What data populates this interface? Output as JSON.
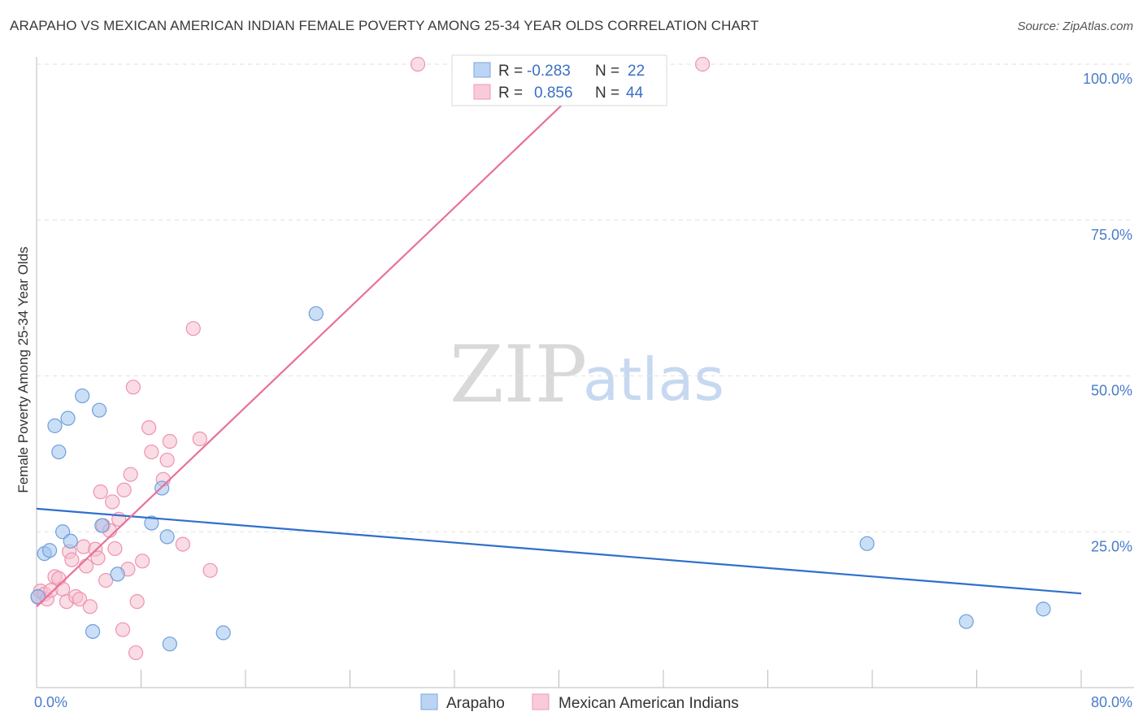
{
  "title": "ARAPAHO VS MEXICAN AMERICAN INDIAN FEMALE POVERTY AMONG 25-34 YEAR OLDS CORRELATION CHART",
  "source": "Source: ZipAtlas.com",
  "watermark": {
    "zip": "ZIP",
    "atlas": "atlas"
  },
  "legend": {
    "rows": [
      {
        "r_label": "R =",
        "r_value": "-0.283",
        "n_label": "N =",
        "n_value": "22"
      },
      {
        "r_label": "R =",
        "r_value": "0.856",
        "n_label": "N =",
        "n_value": "44"
      }
    ]
  },
  "chart_data": {
    "type": "scatter",
    "title": "ARAPAHO VS MEXICAN AMERICAN INDIAN FEMALE POVERTY AMONG 25-34 YEAR OLDS CORRELATION CHART",
    "xlabel": "",
    "ylabel": "Female Poverty Among 25-34 Year Olds",
    "xlim": [
      0,
      80
    ],
    "ylim": [
      0,
      102
    ],
    "x_tick_labels": [
      "0.0%",
      "80.0%"
    ],
    "y_ticks": [
      25,
      50,
      75,
      100
    ],
    "y_tick_labels": [
      "25.0%",
      "50.0%",
      "75.0%",
      "100.0%"
    ],
    "grid": true,
    "legend_position": "bottom",
    "series": [
      {
        "name": "Arapaho",
        "color": "#9ec2ee",
        "edge": "#6f9fdc",
        "line_color": "#2f6fcc",
        "trend": {
          "x0": 0,
          "y0": 28.7,
          "x1": 80,
          "y1": 15.1
        },
        "points": [
          [
            0.6,
            21.5
          ],
          [
            1.0,
            22.0
          ],
          [
            1.4,
            42.0
          ],
          [
            1.7,
            37.8
          ],
          [
            2.0,
            25.0
          ],
          [
            2.4,
            43.2
          ],
          [
            2.6,
            23.5
          ],
          [
            3.5,
            46.8
          ],
          [
            4.3,
            9.0
          ],
          [
            4.8,
            44.5
          ],
          [
            5.0,
            26.0
          ],
          [
            6.2,
            18.2
          ],
          [
            8.8,
            26.4
          ],
          [
            9.6,
            32.0
          ],
          [
            10.0,
            24.2
          ],
          [
            10.2,
            7.0
          ],
          [
            14.3,
            8.8
          ],
          [
            21.4,
            60.0
          ],
          [
            63.6,
            23.1
          ],
          [
            71.2,
            10.6
          ],
          [
            77.1,
            12.6
          ],
          [
            0.1,
            14.6
          ]
        ]
      },
      {
        "name": "Mexican American Indians",
        "color": "#f6bfd0",
        "edge": "#ee93b0",
        "line_color": "#e8719a",
        "trend": {
          "x0": 0,
          "y0": 13.0,
          "x1": 43.5,
          "y1": 100.0
        },
        "points": [
          [
            0.1,
            14.5
          ],
          [
            0.3,
            15.5
          ],
          [
            0.6,
            15.0
          ],
          [
            0.8,
            14.2
          ],
          [
            1.1,
            15.6
          ],
          [
            1.4,
            17.8
          ],
          [
            1.7,
            17.5
          ],
          [
            2.0,
            15.8
          ],
          [
            2.3,
            13.8
          ],
          [
            2.5,
            21.8
          ],
          [
            2.7,
            20.5
          ],
          [
            3.0,
            14.6
          ],
          [
            3.3,
            14.2
          ],
          [
            3.6,
            22.6
          ],
          [
            3.8,
            19.5
          ],
          [
            4.1,
            13.0
          ],
          [
            4.5,
            22.2
          ],
          [
            4.7,
            20.8
          ],
          [
            4.9,
            31.4
          ],
          [
            5.1,
            26.0
          ],
          [
            5.3,
            17.2
          ],
          [
            5.6,
            25.2
          ],
          [
            5.8,
            29.8
          ],
          [
            6.0,
            22.3
          ],
          [
            6.3,
            27.0
          ],
          [
            6.7,
            31.7
          ],
          [
            7.0,
            19.0
          ],
          [
            7.2,
            34.2
          ],
          [
            7.4,
            48.2
          ],
          [
            7.7,
            13.8
          ],
          [
            7.6,
            5.6
          ],
          [
            8.1,
            20.3
          ],
          [
            8.6,
            41.7
          ],
          [
            8.8,
            37.8
          ],
          [
            9.7,
            33.4
          ],
          [
            10.0,
            36.5
          ],
          [
            10.2,
            39.5
          ],
          [
            11.2,
            23.0
          ],
          [
            12.0,
            57.6
          ],
          [
            12.5,
            39.9
          ],
          [
            13.3,
            18.8
          ],
          [
            6.6,
            9.3
          ],
          [
            29.2,
            100.0
          ],
          [
            51.0,
            100.0
          ]
        ]
      }
    ]
  }
}
